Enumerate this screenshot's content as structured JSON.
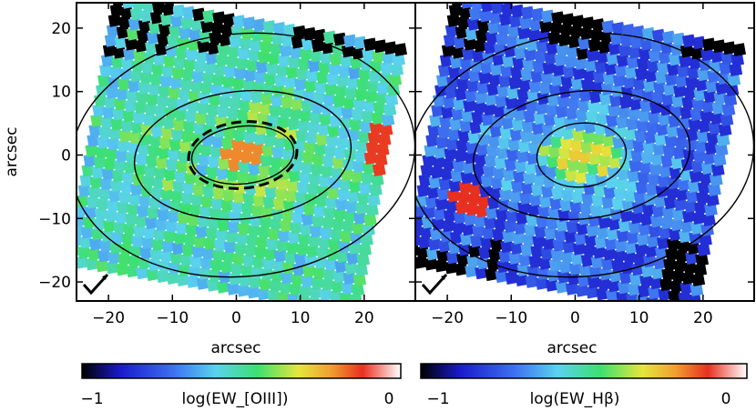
{
  "figure": {
    "panels": [
      {
        "id": "oiii",
        "xlabel": "arcsec",
        "ylabel": "arcsec",
        "colorbar": {
          "min_label": "−1",
          "label": "log(EW_[OIII])",
          "max_label": "0"
        }
      },
      {
        "id": "hbeta",
        "xlabel": "arcsec",
        "ylabel": "",
        "colorbar": {
          "min_label": "−1",
          "label": "log(EW_Hβ)",
          "max_label": "0"
        }
      }
    ]
  },
  "chart_data": [
    {
      "type": "heatmap",
      "title": "",
      "xlabel": "arcsec",
      "ylabel": "arcsec",
      "xlim": [
        -25,
        28
      ],
      "ylim": [
        -23,
        24
      ],
      "xticks": [
        -20,
        -10,
        0,
        10,
        20
      ],
      "yticks": [
        -20,
        -10,
        0,
        10,
        20
      ],
      "xtick_labels": [
        "−20",
        "−10",
        "0",
        "10",
        "20"
      ],
      "ytick_labels": [
        "−20",
        "−10",
        "0",
        "10",
        "20"
      ],
      "colorbar": {
        "label": "log(EW_[OIII])",
        "range": [
          -1,
          0
        ],
        "tick_labels": [
          "−1",
          "0"
        ],
        "colormap": "rainbow"
      },
      "ellipses_arcsec": [
        {
          "cx": 1,
          "cy": 0,
          "rx": 8,
          "ry": 4.5,
          "style": "solid"
        },
        {
          "cx": 1,
          "cy": 0,
          "rx": 8.5,
          "ry": 5.2,
          "style": "dashed"
        },
        {
          "cx": 1,
          "cy": 0,
          "rx": 17,
          "ry": 10,
          "style": "solid"
        },
        {
          "cx": 1,
          "cy": 0,
          "rx": 27,
          "ry": 19,
          "style": "solid"
        }
      ],
      "compass": "lower-left"
    },
    {
      "type": "heatmap",
      "title": "",
      "xlabel": "arcsec",
      "ylabel": "",
      "xlim": [
        -25,
        28
      ],
      "ylim": [
        -23,
        24
      ],
      "xticks": [
        -20,
        -10,
        0,
        10,
        20
      ],
      "yticks": [
        -20,
        -10,
        0,
        10,
        20
      ],
      "xtick_labels": [
        "−20",
        "−10",
        "0",
        "10",
        "20"
      ],
      "colorbar": {
        "label": "log(EW_Hβ)",
        "range": [
          -1,
          0
        ],
        "tick_labels": [
          "−1",
          "0"
        ],
        "colormap": "rainbow"
      },
      "ellipses_arcsec": [
        {
          "cx": 1,
          "cy": 0,
          "rx": 7,
          "ry": 5,
          "style": "solid"
        },
        {
          "cx": 1,
          "cy": 0,
          "rx": 17,
          "ry": 10,
          "style": "solid"
        },
        {
          "cx": 1,
          "cy": 0,
          "rx": 27,
          "ry": 19,
          "style": "solid"
        }
      ],
      "compass": "lower-left"
    }
  ],
  "colors": {
    "frame": "#000000",
    "background": "#ffffff",
    "colormap_stops": [
      "#000000",
      "#1a1acc",
      "#3c6cf0",
      "#5ad2ee",
      "#3ce070",
      "#e6e63c",
      "#f0a030",
      "#e83020",
      "#ffffff"
    ]
  }
}
